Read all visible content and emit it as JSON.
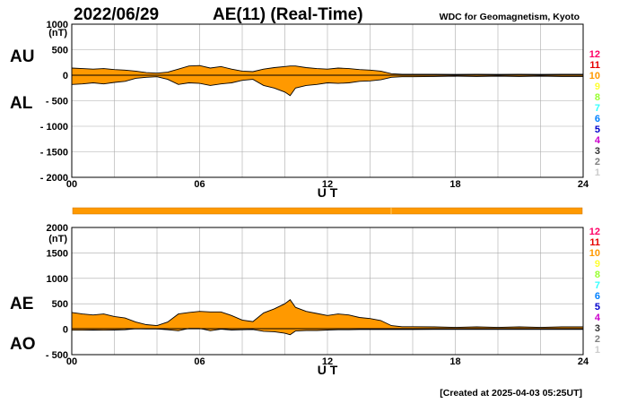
{
  "header": {
    "date": "2022/06/29",
    "title": "AE(11) (Real-Time)",
    "org": "WDC for Geomagnetism, Kyoto"
  },
  "footer": "[Created at 2025-04-03 05:25UT]",
  "colors": {
    "fill": "#ff9900",
    "status_bar": "#ff9900",
    "grid": "#aaaaaa"
  },
  "station_counts": [
    {
      "n": "12",
      "color": "#ff0066"
    },
    {
      "n": "11",
      "color": "#e60000"
    },
    {
      "n": "10",
      "color": "#ff9900"
    },
    {
      "n": "9",
      "color": "#ffff33"
    },
    {
      "n": "8",
      "color": "#99ff33"
    },
    {
      "n": "7",
      "color": "#33ffff"
    },
    {
      "n": "6",
      "color": "#0080ff"
    },
    {
      "n": "5",
      "color": "#0000cc"
    },
    {
      "n": "4",
      "color": "#cc00cc"
    },
    {
      "n": "3",
      "color": "#333333"
    },
    {
      "n": "2",
      "color": "#808080"
    },
    {
      "n": "1",
      "color": "#cccccc"
    }
  ],
  "chart_data": [
    {
      "type": "area",
      "panel": "AU/AL",
      "series_labels": [
        "AU",
        "AL"
      ],
      "ylabel": "(nT)",
      "ylim": [
        -2000,
        1000
      ],
      "yticks": [
        "1000",
        "500",
        "0",
        "- 500",
        "- 1000",
        "- 1500",
        "- 2000"
      ],
      "xlabel": "U T",
      "xlim": [
        0,
        24
      ],
      "xticks": [
        "00",
        "06",
        "12",
        "18",
        "24"
      ],
      "grid": true,
      "x": [
        0,
        0.5,
        1,
        1.5,
        2,
        2.5,
        3,
        3.5,
        4,
        4.5,
        5,
        5.5,
        6,
        6.5,
        7,
        7.5,
        8,
        8.5,
        9,
        9.5,
        10,
        10.25,
        10.5,
        11,
        11.5,
        12,
        12.5,
        13,
        13.5,
        14,
        14.5,
        15,
        15.5,
        16,
        17,
        18,
        19,
        20,
        21,
        22,
        23,
        24
      ],
      "series": [
        {
          "name": "AU",
          "values": [
            140,
            130,
            120,
            130,
            110,
            100,
            80,
            50,
            40,
            60,
            120,
            180,
            190,
            140,
            170,
            120,
            80,
            70,
            120,
            150,
            170,
            180,
            180,
            150,
            130,
            120,
            140,
            130,
            110,
            100,
            80,
            30,
            20,
            20,
            20,
            15,
            20,
            15,
            20,
            15,
            20,
            20
          ]
        },
        {
          "name": "AL",
          "values": [
            -180,
            -170,
            -150,
            -170,
            -140,
            -120,
            -60,
            -40,
            -30,
            -80,
            -180,
            -150,
            -160,
            -200,
            -170,
            -150,
            -100,
            -80,
            -200,
            -250,
            -330,
            -400,
            -250,
            -200,
            -180,
            -150,
            -160,
            -150,
            -120,
            -110,
            -90,
            -40,
            -30,
            -30,
            -25,
            -20,
            -25,
            -20,
            -25,
            -20,
            -25,
            -25
          ]
        }
      ]
    },
    {
      "type": "area",
      "panel": "AE/AO",
      "series_labels": [
        "AE",
        "AO"
      ],
      "ylabel": "(nT)",
      "ylim": [
        -500,
        2000
      ],
      "yticks": [
        "2000",
        "1500",
        "1000",
        "500",
        "0",
        "- 500"
      ],
      "xlabel": "U T",
      "xlim": [
        0,
        24
      ],
      "xticks": [
        "00",
        "06",
        "12",
        "18",
        "24"
      ],
      "grid": true,
      "x": [
        0,
        0.5,
        1,
        1.5,
        2,
        2.5,
        3,
        3.5,
        4,
        4.5,
        5,
        5.5,
        6,
        6.5,
        7,
        7.5,
        8,
        8.5,
        9,
        9.5,
        10,
        10.25,
        10.5,
        11,
        11.5,
        12,
        12.5,
        13,
        13.5,
        14,
        14.5,
        15,
        15.5,
        16,
        17,
        18,
        19,
        20,
        21,
        22,
        23,
        24
      ],
      "series": [
        {
          "name": "AE",
          "values": [
            330,
            300,
            280,
            300,
            250,
            220,
            140,
            90,
            70,
            140,
            300,
            330,
            350,
            340,
            340,
            270,
            180,
            150,
            320,
            400,
            500,
            580,
            430,
            350,
            310,
            270,
            300,
            280,
            230,
            210,
            170,
            70,
            50,
            50,
            45,
            35,
            45,
            35,
            45,
            35,
            45,
            45
          ]
        },
        {
          "name": "AO",
          "values": [
            -20,
            -20,
            -15,
            -20,
            -15,
            -10,
            10,
            5,
            5,
            -10,
            -30,
            15,
            15,
            -30,
            0,
            -15,
            -10,
            -5,
            -40,
            -50,
            -80,
            -110,
            -35,
            -25,
            -25,
            -15,
            -10,
            -10,
            -5,
            -5,
            -5,
            -5,
            -5,
            -5,
            -3,
            -3,
            -3,
            -3,
            -3,
            -3,
            -3,
            -3
          ]
        }
      ]
    }
  ]
}
